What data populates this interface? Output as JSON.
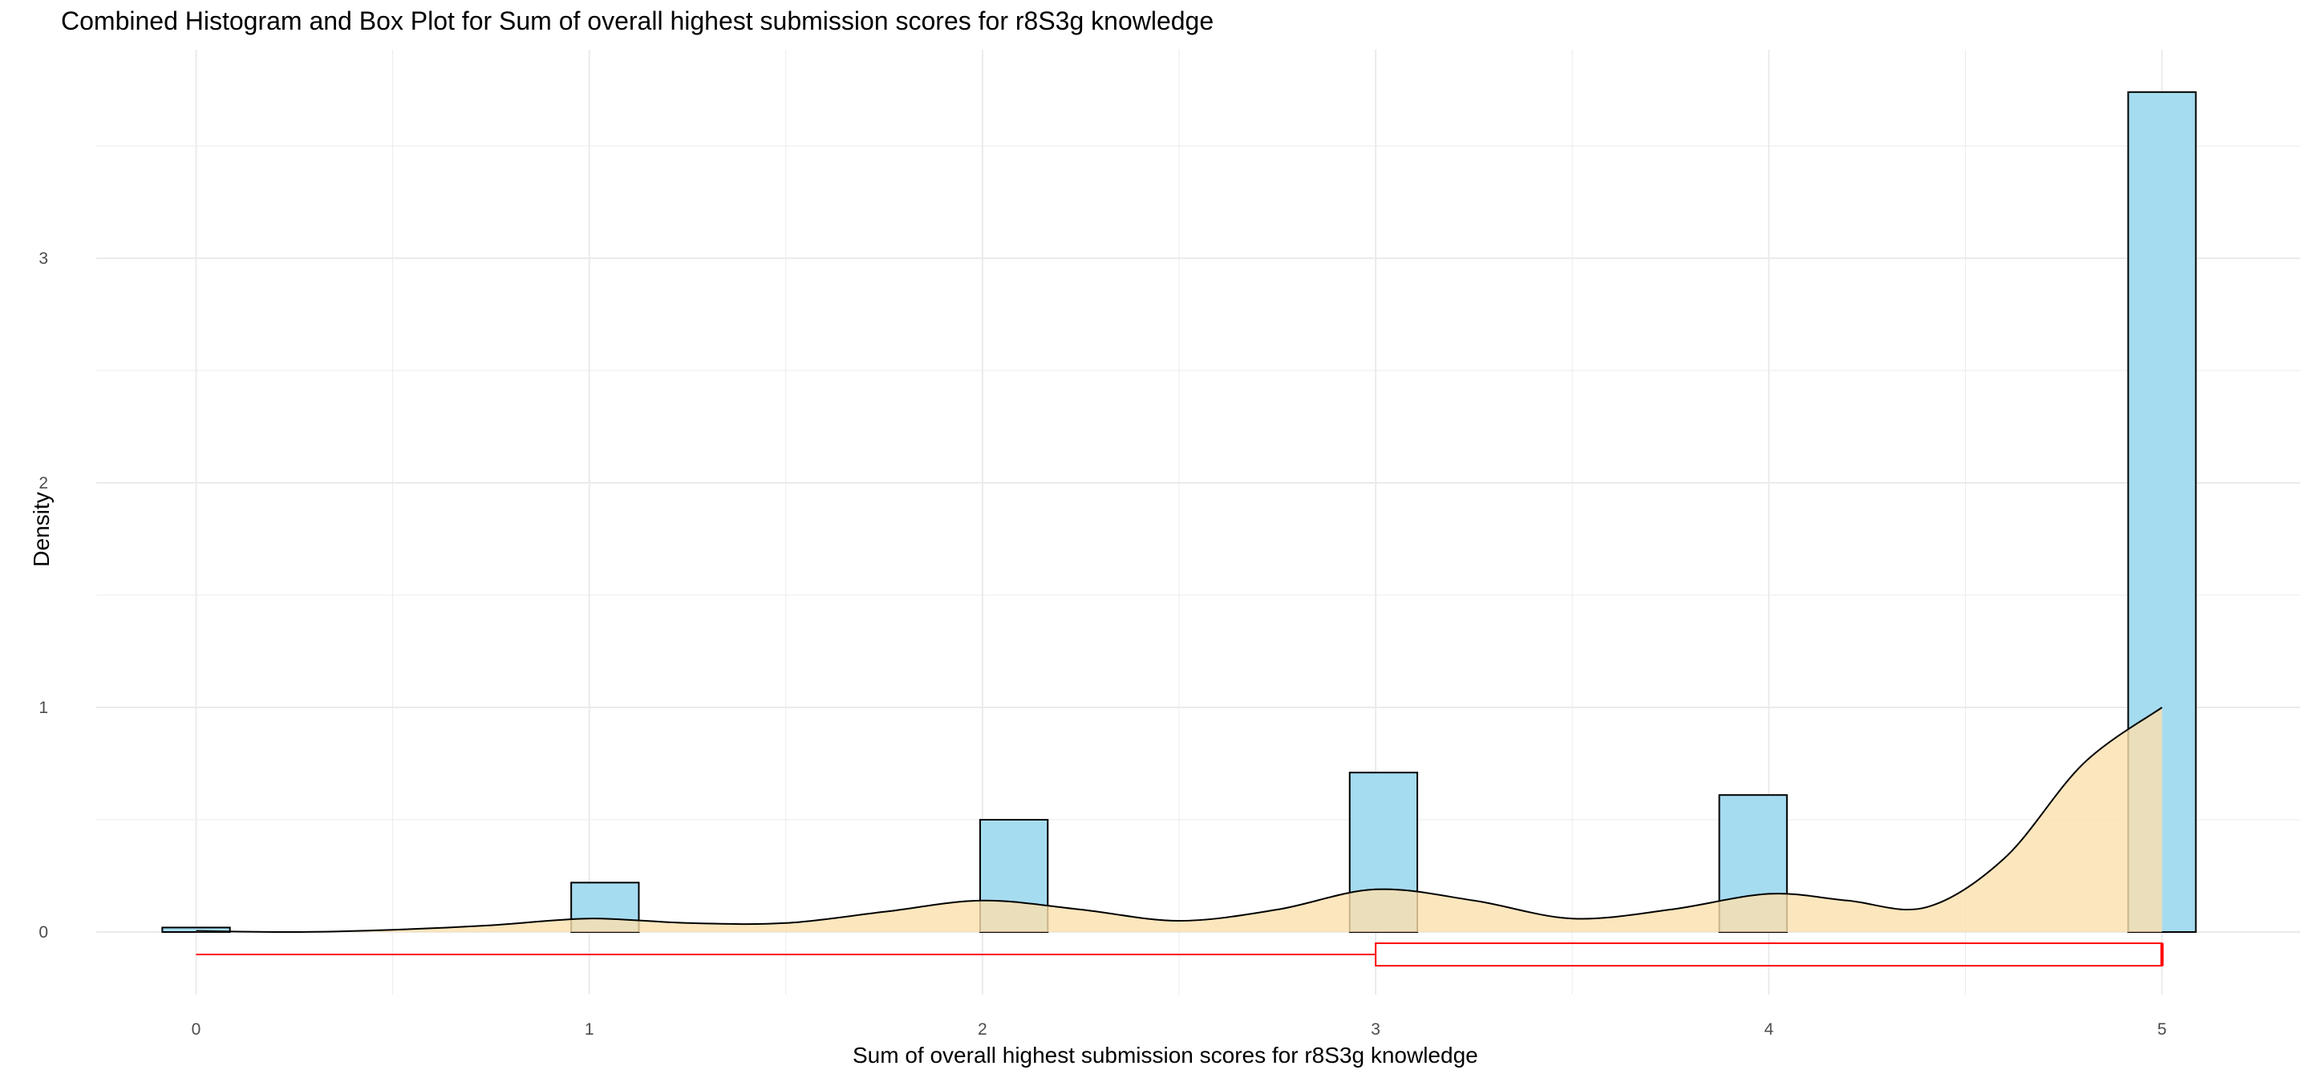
{
  "chart_data": {
    "type": "histogram",
    "title": "Combined Histogram and Box Plot for Sum of overall highest submission scores for r8S3g knowledge",
    "xlabel": "Sum of overall highest submission scores for r8S3g knowledge",
    "ylabel": "Density",
    "xlim": [
      -0.25,
      5.3
    ],
    "ylim": [
      -0.35,
      3.9
    ],
    "x_ticks": [
      "0",
      "1",
      "2",
      "3",
      "4",
      "5"
    ],
    "y_ticks": [
      "0",
      "1",
      "2",
      "3"
    ],
    "grid": true,
    "colors": {
      "histogram_fill": "#a6dcf0",
      "histogram_stroke": "#000000",
      "density_fill": "#fbe0ad",
      "density_stroke": "#000000",
      "boxplot_stroke": "#ff0000",
      "grid": "#ebebeb"
    },
    "histogram": {
      "bin_width": 0.172,
      "bins": [
        {
          "x": 0.0,
          "density": 0.02
        },
        {
          "x": 1.04,
          "density": 0.22
        },
        {
          "x": 2.08,
          "density": 0.5
        },
        {
          "x": 3.02,
          "density": 0.71
        },
        {
          "x": 3.96,
          "density": 0.61
        },
        {
          "x": 5.0,
          "density": 3.74
        }
      ]
    },
    "density_curve": {
      "x": [
        0.0,
        0.25,
        0.5,
        0.75,
        1.0,
        1.25,
        1.5,
        1.75,
        2.0,
        2.25,
        2.5,
        2.75,
        3.0,
        3.25,
        3.5,
        3.75,
        4.0,
        4.2,
        4.4,
        4.6,
        4.8,
        5.0
      ],
      "y": [
        0.005,
        0.0,
        0.01,
        0.03,
        0.06,
        0.04,
        0.04,
        0.09,
        0.14,
        0.1,
        0.05,
        0.1,
        0.19,
        0.14,
        0.06,
        0.1,
        0.17,
        0.14,
        0.11,
        0.33,
        0.75,
        1.0
      ]
    },
    "boxplot": {
      "min": 0.0,
      "q1": 3.0,
      "median": 5.0,
      "q3": 5.0,
      "max": 5.0,
      "y_center": -0.1,
      "height": 0.1
    }
  }
}
